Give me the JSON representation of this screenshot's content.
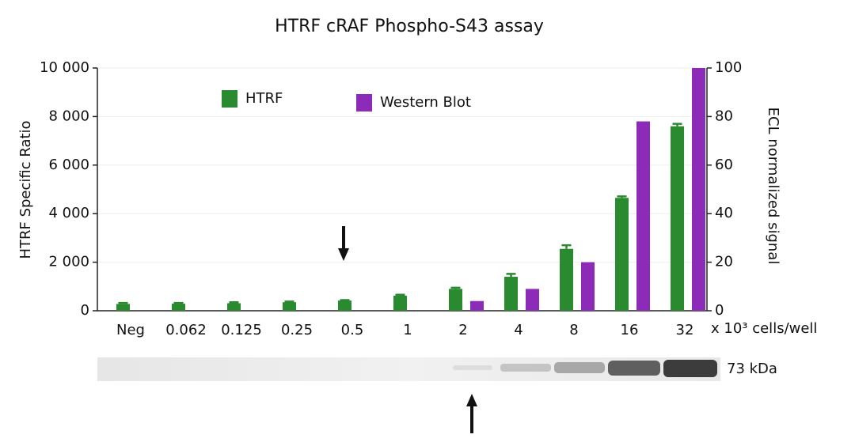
{
  "chart_data": {
    "type": "bar",
    "title": "HTRF cRAF Phospho-S43 assay",
    "y_label": "HTRF Specific Ratio",
    "y2_label": "ECL normalized signal",
    "x_label": "x 10³ cells/well",
    "blot_label": "73 kDa",
    "categories": [
      "Neg",
      "0.062",
      "0.125",
      "0.25",
      "0.5",
      "1",
      "2",
      "4",
      "8",
      "16",
      "32"
    ],
    "series": [
      {
        "name": "HTRF",
        "color": "#2a8a2f",
        "values": [
          280,
          290,
          310,
          350,
          420,
          620,
          900,
          1400,
          2550,
          4650,
          7600
        ],
        "errors": [
          40,
          30,
          40,
          30,
          20,
          40,
          50,
          120,
          150,
          60,
          100
        ]
      },
      {
        "name": "Western Blot",
        "color": "#8b2bb8",
        "axis": "y2",
        "values": [
          null,
          null,
          null,
          null,
          null,
          null,
          4,
          9,
          20,
          78,
          100
        ]
      }
    ],
    "ylim": [
      0,
      10000
    ],
    "yticks": [
      0,
      {
        "value": 2000,
        "label": "2 000"
      },
      {
        "value": 4000,
        "label": "4 000"
      },
      {
        "value": 6000,
        "label": "6 000"
      },
      {
        "value": 8000,
        "label": "8 000"
      },
      {
        "value": 10000,
        "label": "10 000"
      }
    ],
    "y2lim": [
      0,
      100
    ],
    "y2ticks": [
      0,
      20,
      40,
      60,
      80,
      100
    ],
    "grid": true
  }
}
